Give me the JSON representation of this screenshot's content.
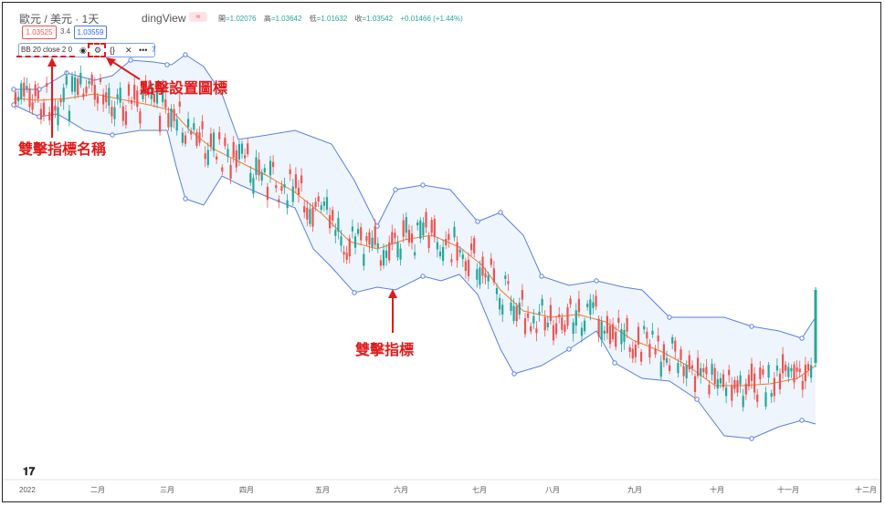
{
  "header": {
    "title": "歐元 / 美元 · 1天",
    "brand": "dingView",
    "badge": "≈",
    "ohlc": [
      {
        "label": "開",
        "value": "=1.02076"
      },
      {
        "label": "高",
        "value": "=1.03642"
      },
      {
        "label": "低",
        "value": "=1.01632"
      },
      {
        "label": "收",
        "value": "=1.03542"
      },
      {
        "label": "",
        "value": "+0.01466 (+1.44%)"
      }
    ]
  },
  "quote": {
    "sell": "1.03525",
    "spread": "3.4",
    "buy": "1.03559"
  },
  "indicator": {
    "name": "BB 20 close 2 0",
    "tail": "7"
  },
  "annotations": {
    "name_label": "雙擊指標名稱",
    "settings_label": "點擊設置圖標",
    "indicator_label": "雙擊指標"
  },
  "colors": {
    "up": "#26a69a",
    "down": "#ef5350",
    "band": "#5b7fdb",
    "basis": "#f07c2a",
    "fill": "#eef5fc",
    "annot": "#e01b1b"
  },
  "icons": [
    "eye-icon",
    "settings-icon",
    "braces-icon",
    "close-icon",
    "more-icon",
    "tradingview-logo-icon"
  ],
  "chart_data": {
    "type": "candlestick",
    "indicator": "Bollinger Bands (20, close, 2)",
    "x_ticks": [
      "2022",
      "二月",
      "三月",
      "四月",
      "五月",
      "六月",
      "七月",
      "八月",
      "九月",
      "十月",
      "十一月",
      "十二月"
    ],
    "basis_path_approx": [
      1.145,
      1.143,
      1.141,
      1.13,
      1.12,
      1.105,
      1.095,
      1.08,
      1.06,
      1.055,
      1.06,
      1.07,
      1.05,
      1.02,
      1.0,
      1.0,
      0.99,
      0.975,
      0.97,
      0.985,
      1.0
    ],
    "upper_band_approx": [
      1.16,
      1.165,
      1.158,
      1.14,
      1.125,
      1.12,
      1.105,
      1.09,
      1.085,
      1.09,
      1.08,
      1.07,
      1.04,
      1.03,
      1.025,
      1.02,
      1.01,
      1.01,
      1.005,
      1.03
    ],
    "lower_band_approx": [
      1.125,
      1.123,
      1.11,
      1.085,
      1.07,
      1.04,
      1.04,
      1.035,
      1.035,
      1.03,
      1.035,
      0.99,
      0.985,
      0.975,
      0.965,
      0.96,
      0.96,
      0.955,
      0.965,
      0.96
    ]
  }
}
